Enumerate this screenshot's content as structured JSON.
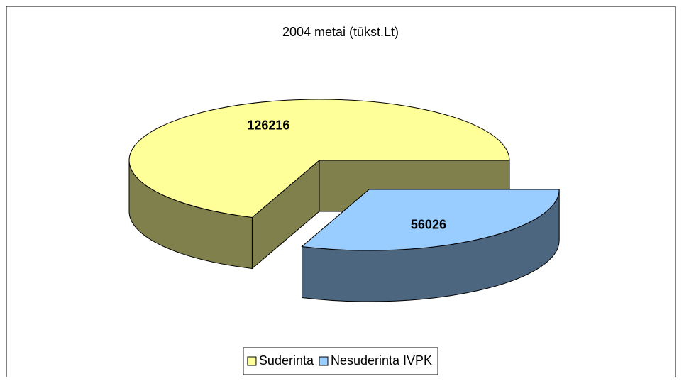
{
  "chart_data": {
    "type": "pie",
    "title": "2004 metai (tūkst.Lt)",
    "categories": [
      "Suderinta",
      "Nesuderinta IVPK"
    ],
    "values": [
      126216,
      56026
    ],
    "colors": [
      "#ffff99",
      "#99ccff"
    ],
    "legend": "bottom"
  }
}
